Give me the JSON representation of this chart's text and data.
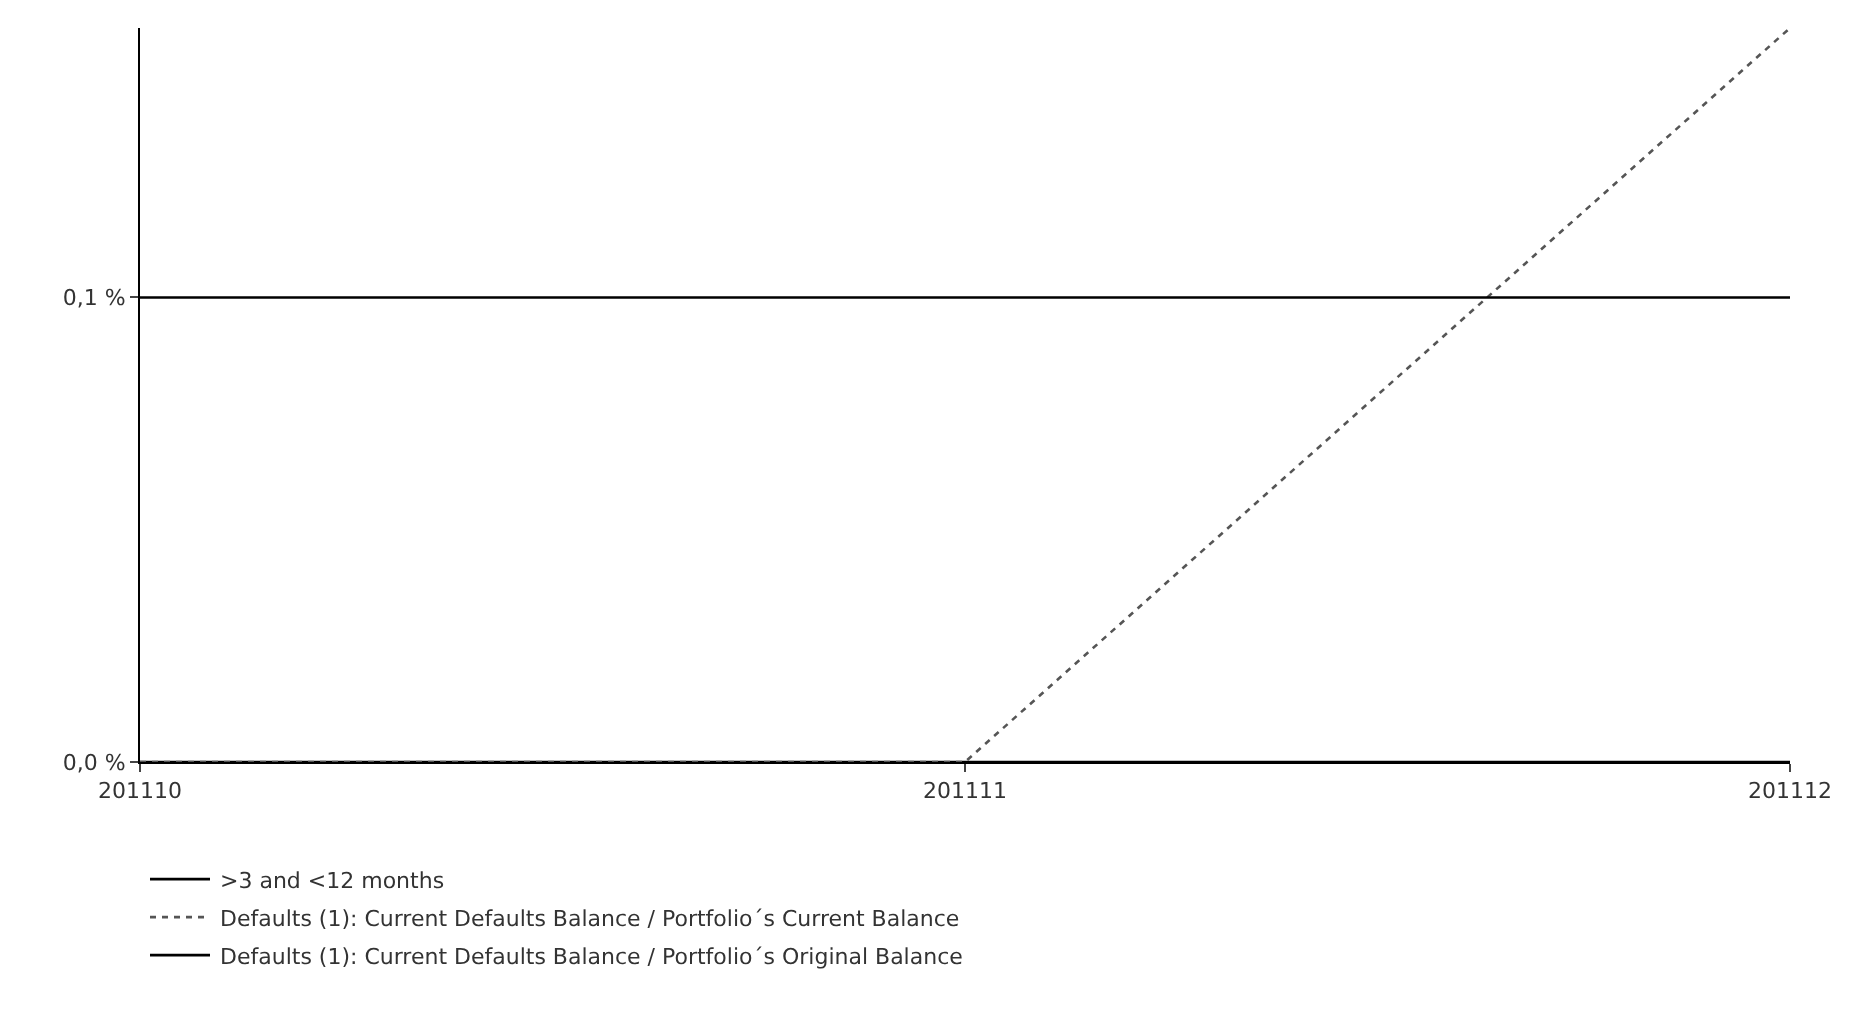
{
  "chart_data": {
    "type": "line",
    "categories": [
      "201110",
      "201111",
      "201112"
    ],
    "series": [
      {
        "name": ">3 and <12 months",
        "color": "#000000",
        "values": [
          0,
          0,
          0
        ],
        "line_style": "solid"
      },
      {
        "name": "Defaults (1): Current Defaults Balance / Portfolio´s Current Balance",
        "color": "#555555",
        "values": [
          0,
          0,
          0.158
        ],
        "line_style": "dotted"
      },
      {
        "name": "Defaults (1): Current Defaults Balance / Portfolio´s Original Balance",
        "color": "#000000",
        "values": [
          0.1,
          0.1,
          0.1
        ],
        "line_style": "solid"
      }
    ],
    "ylim": [
      0,
      0.158
    ],
    "yticks": [
      {
        "value": 0,
        "label": "0,0 %"
      },
      {
        "value": 0.1,
        "label": "0,1 %"
      }
    ],
    "legend": "bottom left",
    "marker": "none"
  }
}
